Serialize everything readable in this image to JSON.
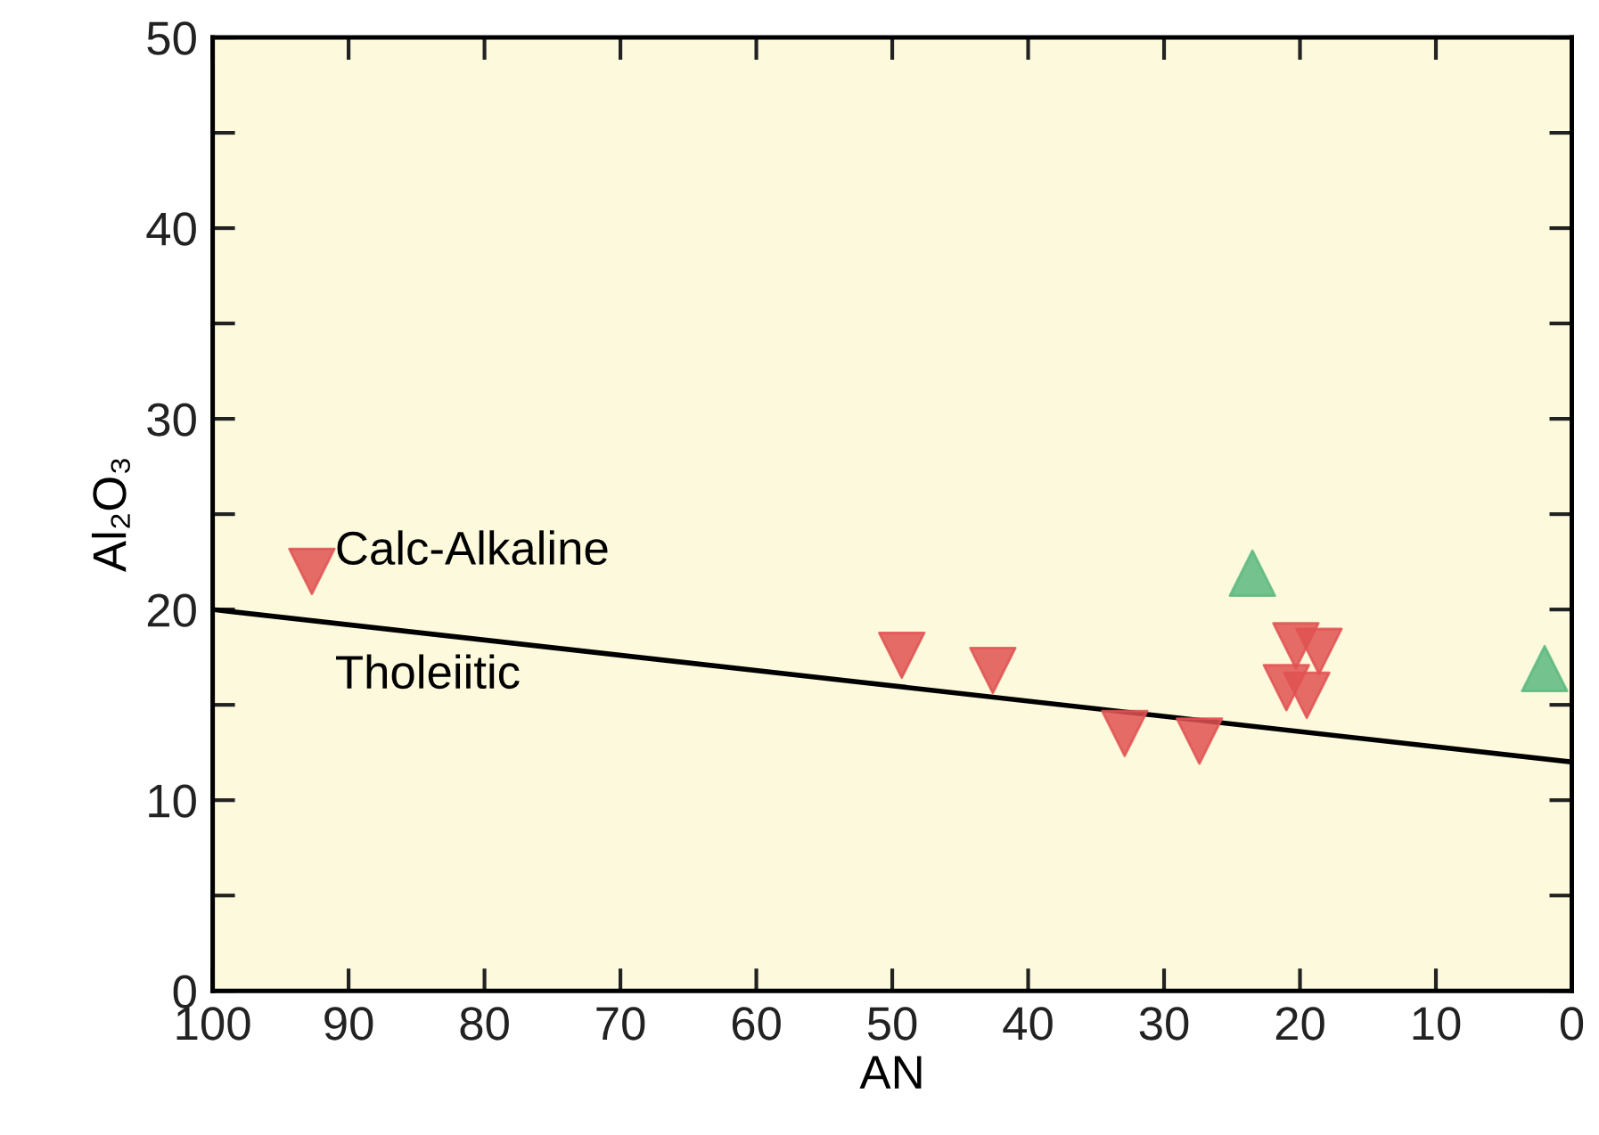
{
  "chart_data": {
    "type": "scatter",
    "xlabel": "AN",
    "ylabel": "Al₂O₃",
    "xlim": [
      100,
      0
    ],
    "xticks": [
      100,
      90,
      80,
      70,
      60,
      50,
      40,
      30,
      20,
      10,
      0
    ],
    "ylim": [
      0,
      50
    ],
    "yticks": [
      0,
      {
        "value": 5,
        "label": null
      },
      10,
      {
        "value": 15,
        "label": null
      },
      20,
      {
        "value": 25,
        "label": null
      },
      30,
      {
        "value": 35,
        "label": null
      },
      40,
      {
        "value": 45,
        "label": null
      },
      50
    ],
    "grid": false,
    "legend": false,
    "annotations": [
      "Calc-Alkaline",
      "Tholeiitic"
    ],
    "series": [
      {
        "marker": "triangle_down",
        "color": "#e05252",
        "x": [
          92.7,
          49.3,
          42.6,
          32.9,
          27.4,
          20.3,
          18.6,
          21.0,
          19.5
        ],
        "values": [
          22.0,
          17.6,
          16.8,
          13.5,
          13.1,
          18.1,
          17.8,
          15.9,
          15.5
        ]
      },
      {
        "marker": "triangle",
        "color": "#5cb880",
        "x": [
          23.5,
          2.0
        ],
        "values": [
          21.9,
          16.9
        ]
      },
      {
        "type": "line",
        "line_style": "solid",
        "color": "#000000",
        "x": [
          100,
          0
        ],
        "values": [
          20,
          12
        ]
      }
    ]
  }
}
